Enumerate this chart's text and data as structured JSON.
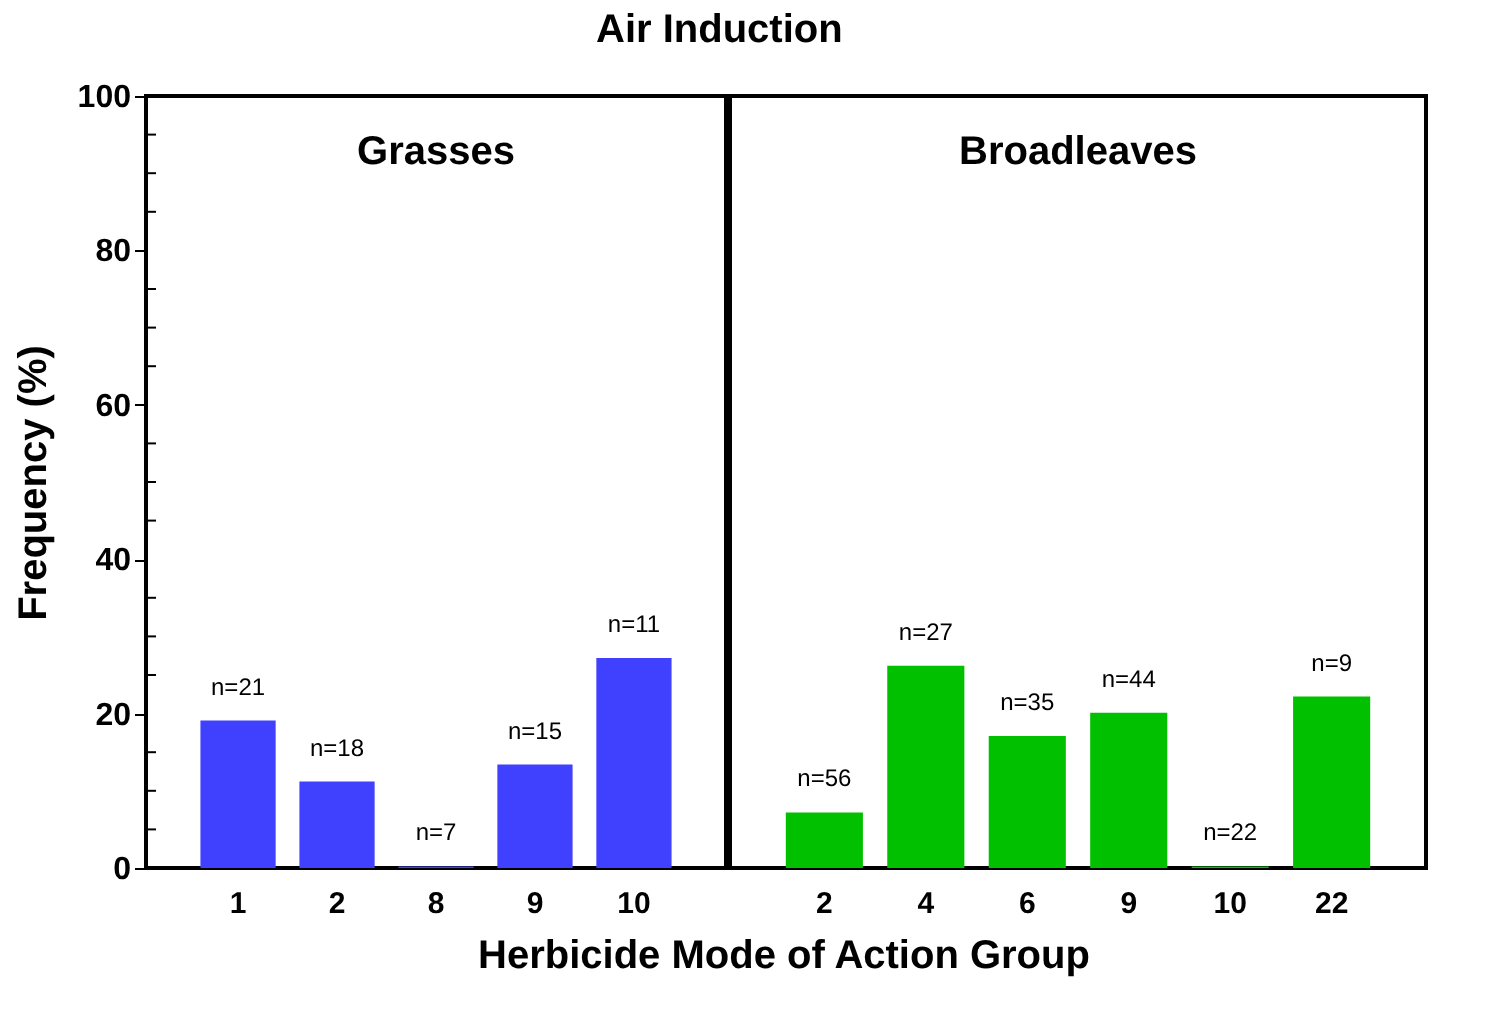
{
  "chart_data": [
    {
      "type": "bar",
      "title": "Air Induction",
      "subtitle": "Grasses",
      "xlabel": "Herbicide Mode of Action Group",
      "ylabel": "Frequency (%)",
      "categories": [
        "1",
        "2",
        "8",
        "9",
        "10"
      ],
      "series": [
        {
          "color": "#4040ff",
          "values": [
            19.1,
            11.2,
            0.2,
            13.4,
            27.2
          ]
        }
      ],
      "annotations": [
        {
          "text": "n=21",
          "x": "1",
          "y": 19.1
        },
        {
          "text": "n=18",
          "x": "2",
          "y": 11.2
        },
        {
          "text": "n=7",
          "x": "8",
          "y": 0.2
        },
        {
          "text": "n=15",
          "x": "9",
          "y": 13.4
        },
        {
          "text": "n=11",
          "x": "10",
          "y": 27.2
        }
      ],
      "ylim": [
        0,
        100
      ],
      "yticks": [
        0,
        {
          "value": 5,
          "label": null
        },
        {
          "value": 10,
          "label": null
        },
        {
          "value": 15,
          "label": null
        },
        20,
        {
          "value": 25,
          "label": null
        },
        {
          "value": 30,
          "label": null
        },
        {
          "value": 35,
          "label": null
        },
        40,
        {
          "value": 45,
          "label": null
        },
        {
          "value": 50,
          "label": null
        },
        {
          "value": 55,
          "label": null
        },
        60,
        {
          "value": 65,
          "label": null
        },
        {
          "value": 70,
          "label": null
        },
        {
          "value": 75,
          "label": null
        },
        80,
        {
          "value": 85,
          "label": null
        },
        {
          "value": 90,
          "label": null
        },
        {
          "value": 95,
          "label": null
        },
        100
      ]
    },
    {
      "type": "bar",
      "subtitle": "Broadleaves",
      "categories": [
        "2",
        "4",
        "6",
        "9",
        "10",
        "22"
      ],
      "series": [
        {
          "color": "#00c000",
          "values": [
            7.2,
            26.2,
            17.1,
            20.1,
            0.2,
            22.2
          ]
        }
      ],
      "annotations": [
        {
          "text": "n=56",
          "x": "2",
          "y": 7.2
        },
        {
          "text": "n=27",
          "x": "4",
          "y": 26.2
        },
        {
          "text": "n=35",
          "x": "6",
          "y": 17.1
        },
        {
          "text": "n=44",
          "x": "9",
          "y": 20.1
        },
        {
          "text": "n=22",
          "x": "10",
          "y": 0.2
        },
        {
          "text": "n=9",
          "x": "22",
          "y": 22.2
        }
      ],
      "ylim": [
        0,
        100
      ],
      "tick_labels": "x"
    }
  ]
}
